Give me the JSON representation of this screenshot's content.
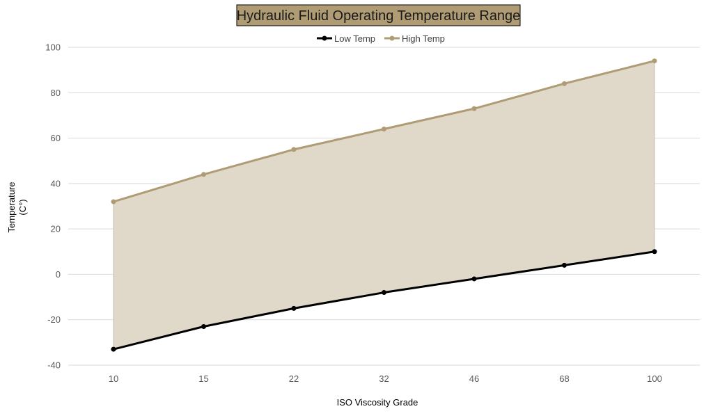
{
  "chart_data": {
    "type": "area",
    "title": "Hydraulic Fluid Operating Temperature Range",
    "xlabel": "ISO Viscosity Grade",
    "ylabel_lines": [
      "Temperature",
      "(C°)"
    ],
    "categories": [
      "10",
      "15",
      "22",
      "32",
      "46",
      "68",
      "100"
    ],
    "series": [
      {
        "name": "Low Temp",
        "values": [
          -33,
          -23,
          -15,
          -8,
          -2,
          4,
          10
        ],
        "color": "#000000"
      },
      {
        "name": "High Temp",
        "values": [
          32,
          44,
          55,
          64,
          73,
          84,
          94
        ],
        "color": "#b09c74"
      }
    ],
    "band_fill": "#e0d9c9",
    "ylim": [
      -40,
      100
    ],
    "yticks": [
      100,
      80,
      60,
      40,
      20,
      0,
      -20,
      -40
    ],
    "grid": true,
    "legend_position": "top-center",
    "title_box_fill": "#b09c74"
  }
}
